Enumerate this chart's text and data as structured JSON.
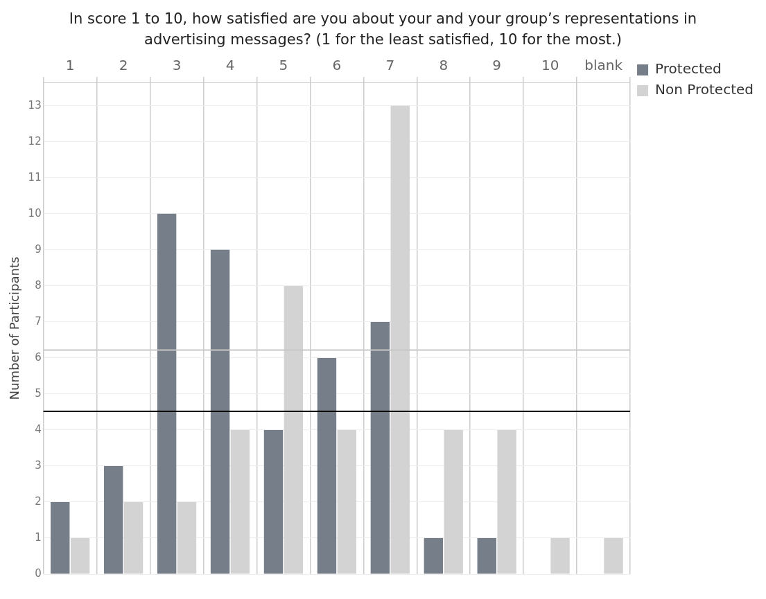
{
  "chart_data": {
    "type": "bar",
    "title": "In score 1 to 10, how satisfied are you about your and your group’s representations in advertising messages? (1 for the least satisfied, 10 for the most.)",
    "ylabel": "Number of Participants",
    "categories": [
      "1",
      "2",
      "3",
      "4",
      "5",
      "6",
      "7",
      "8",
      "9",
      "10",
      "blank"
    ],
    "series": [
      {
        "name": "Protected",
        "color": "#767e8a",
        "values": [
          2,
          3,
          10,
          9,
          4,
          6,
          7,
          1,
          1,
          0,
          0
        ]
      },
      {
        "name": "Non Protected",
        "color": "#d3d3d3",
        "values": [
          1,
          2,
          2,
          4,
          8,
          4,
          13,
          4,
          4,
          1,
          1
        ]
      }
    ],
    "ylim": [
      0,
      13.65
    ],
    "yticks": [
      0,
      1,
      2,
      3,
      4,
      5,
      6,
      7,
      8,
      9,
      10,
      11,
      12,
      13
    ],
    "ref_lines": [
      {
        "axis": "y",
        "value": 4.52,
        "color": "#000000"
      },
      {
        "axis": "y",
        "value": 6.22,
        "color": "#c8c8c8"
      }
    ],
    "grid": true,
    "legend": "top right"
  }
}
